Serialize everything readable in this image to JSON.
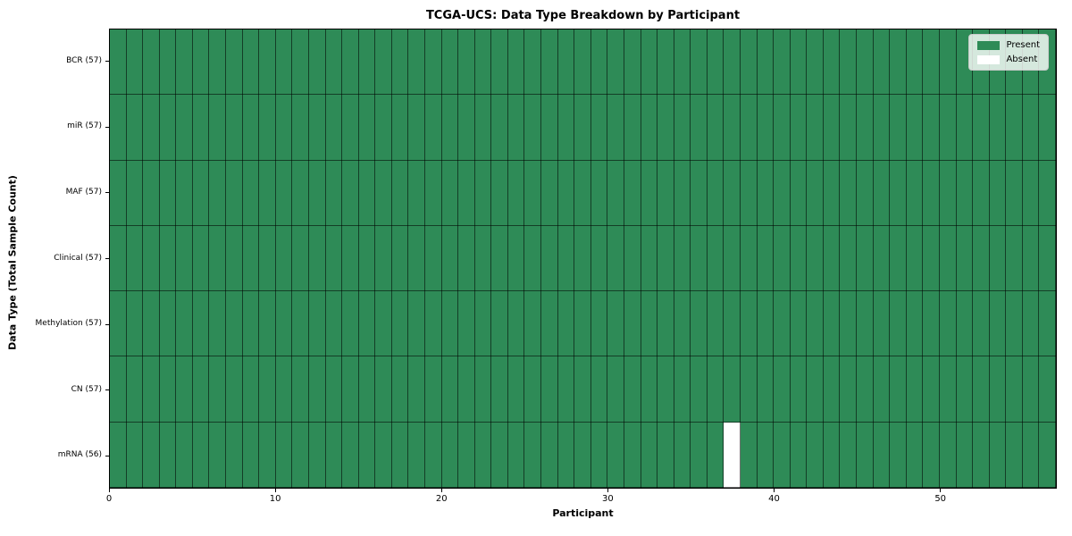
{
  "title": "TCGA-UCS: Data Type Breakdown by Participant",
  "x_axis": {
    "label": "Participant",
    "tick_labels": [
      "0",
      "10",
      "20",
      "30",
      "40",
      "50"
    ],
    "tick_values": [
      0,
      10,
      20,
      30,
      40,
      50
    ],
    "min": 0,
    "max": 57
  },
  "y_axis": {
    "label": "Data Type (Total Sample Count)",
    "tick_labels_top_to_bottom": [
      "BCR (57)",
      "miR (57)",
      "MAF (57)",
      "Clinical (57)",
      "Methylation (57)",
      "CN (57)",
      "mRNA (56)"
    ]
  },
  "legend": {
    "position": "upper-right",
    "items": [
      {
        "label": "Present",
        "color": "#2e8b57"
      },
      {
        "label": "Absent",
        "color": "#ffffff"
      }
    ]
  },
  "colors": {
    "present": "#2e8b57",
    "absent": "#ffffff",
    "grid_line": "rgba(0,0,0,0.55)",
    "axes_edge": "#000000",
    "background": "#ffffff"
  },
  "chart_data": {
    "type": "heatmap",
    "title": "TCGA-UCS: Data Type Breakdown by Participant",
    "xlabel": "Participant",
    "ylabel": "Data Type (Total Sample Count)",
    "x_range": [
      0,
      57
    ],
    "n_participants": 57,
    "x_ticks": [
      0,
      10,
      20,
      30,
      40,
      50
    ],
    "value_encoding": {
      "present": 1,
      "absent": 0
    },
    "legend_entries": [
      "Present",
      "Absent"
    ],
    "rows_top_to_bottom": [
      {
        "label": "BCR (57)",
        "data_type": "BCR",
        "present_count": 57,
        "total_participants": 57,
        "absent_participant_indices": []
      },
      {
        "label": "miR (57)",
        "data_type": "miR",
        "present_count": 57,
        "total_participants": 57,
        "absent_participant_indices": []
      },
      {
        "label": "MAF (57)",
        "data_type": "MAF",
        "present_count": 57,
        "total_participants": 57,
        "absent_participant_indices": []
      },
      {
        "label": "Clinical (57)",
        "data_type": "Clinical",
        "present_count": 57,
        "total_participants": 57,
        "absent_participant_indices": []
      },
      {
        "label": "Methylation (57)",
        "data_type": "Methylation",
        "present_count": 57,
        "total_participants": 57,
        "absent_participant_indices": []
      },
      {
        "label": "CN (57)",
        "data_type": "CN",
        "present_count": 57,
        "total_participants": 57,
        "absent_participant_indices": []
      },
      {
        "label": "mRNA (56)",
        "data_type": "mRNA",
        "present_count": 56,
        "total_participants": 57,
        "absent_participant_indices": [
          37
        ]
      }
    ]
  }
}
